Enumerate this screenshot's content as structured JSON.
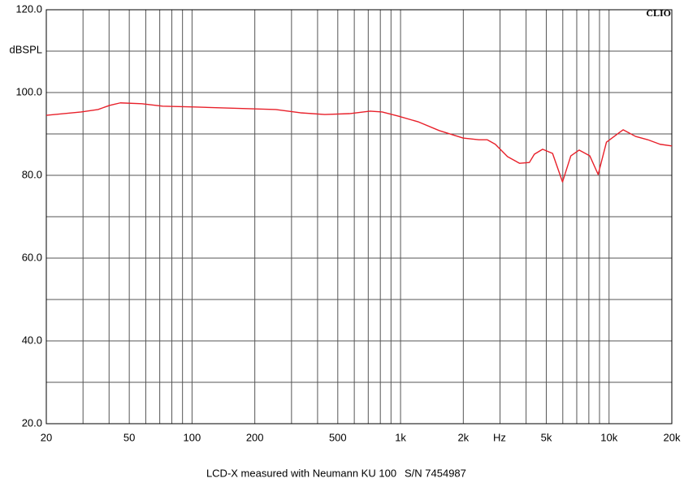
{
  "chart_data": {
    "type": "line",
    "title": "LCD-X measured with Neumann KU 100",
    "serial": "S/N  7454987",
    "brand": "CLIO",
    "ylabel": "dBSPL",
    "xlabel": "Hz",
    "xscale": "log",
    "grid": true,
    "xlim": [
      20,
      20000
    ],
    "ylim": [
      20,
      120
    ],
    "xticks": [
      20,
      50,
      100,
      200,
      500,
      {
        "value": 1000,
        "label": "1k"
      },
      {
        "value": 2000,
        "label": "2k"
      },
      {
        "value": 5000,
        "label": "5k"
      },
      {
        "value": 10000,
        "label": "10k"
      },
      {
        "value": 20000,
        "label": "20k"
      }
    ],
    "xminor": [
      30,
      40,
      60,
      70,
      80,
      90,
      300,
      400,
      600,
      700,
      800,
      900,
      3000,
      4000,
      6000,
      7000,
      8000,
      9000
    ],
    "yticks": [
      {
        "value": 20,
        "label": "20.0"
      },
      {
        "value": 40,
        "label": "40.0"
      },
      {
        "value": 60,
        "label": "60.0"
      },
      {
        "value": 80,
        "label": "80.0"
      },
      {
        "value": 100,
        "label": "100.0"
      },
      {
        "value": 120,
        "label": "120.0"
      }
    ],
    "yminor": [
      30,
      50,
      70,
      90,
      110
    ],
    "x": [
      20,
      29.4,
      35.4,
      40.3,
      45.3,
      57.5,
      72.3,
      103,
      252,
      331,
      433,
      568,
      714,
      816,
      976,
      1220,
      1535,
      1995,
      2376,
      2602,
      2848,
      3260,
      3726,
      4149,
      4383,
      4801,
      5359,
      5981,
      6556,
      7184,
      8087,
      8868,
      9716,
      11681,
      13400,
      15340,
      17570,
      20000
    ],
    "series": [
      {
        "color": "#e8202a",
        "values": [
          94.5,
          95.3,
          95.9,
          96.9,
          97.5,
          97.3,
          96.7,
          96.5,
          95.9,
          95.1,
          94.7,
          94.9,
          95.5,
          95.3,
          94.3,
          92.9,
          90.8,
          89.0,
          88.6,
          88.6,
          87.5,
          84.5,
          82.9,
          83.1,
          85.1,
          86.3,
          85.3,
          78.4,
          84.7,
          86.1,
          84.7,
          80.2,
          88.0,
          91.0,
          89.4,
          88.6,
          87.5,
          87.1
        ]
      }
    ]
  }
}
